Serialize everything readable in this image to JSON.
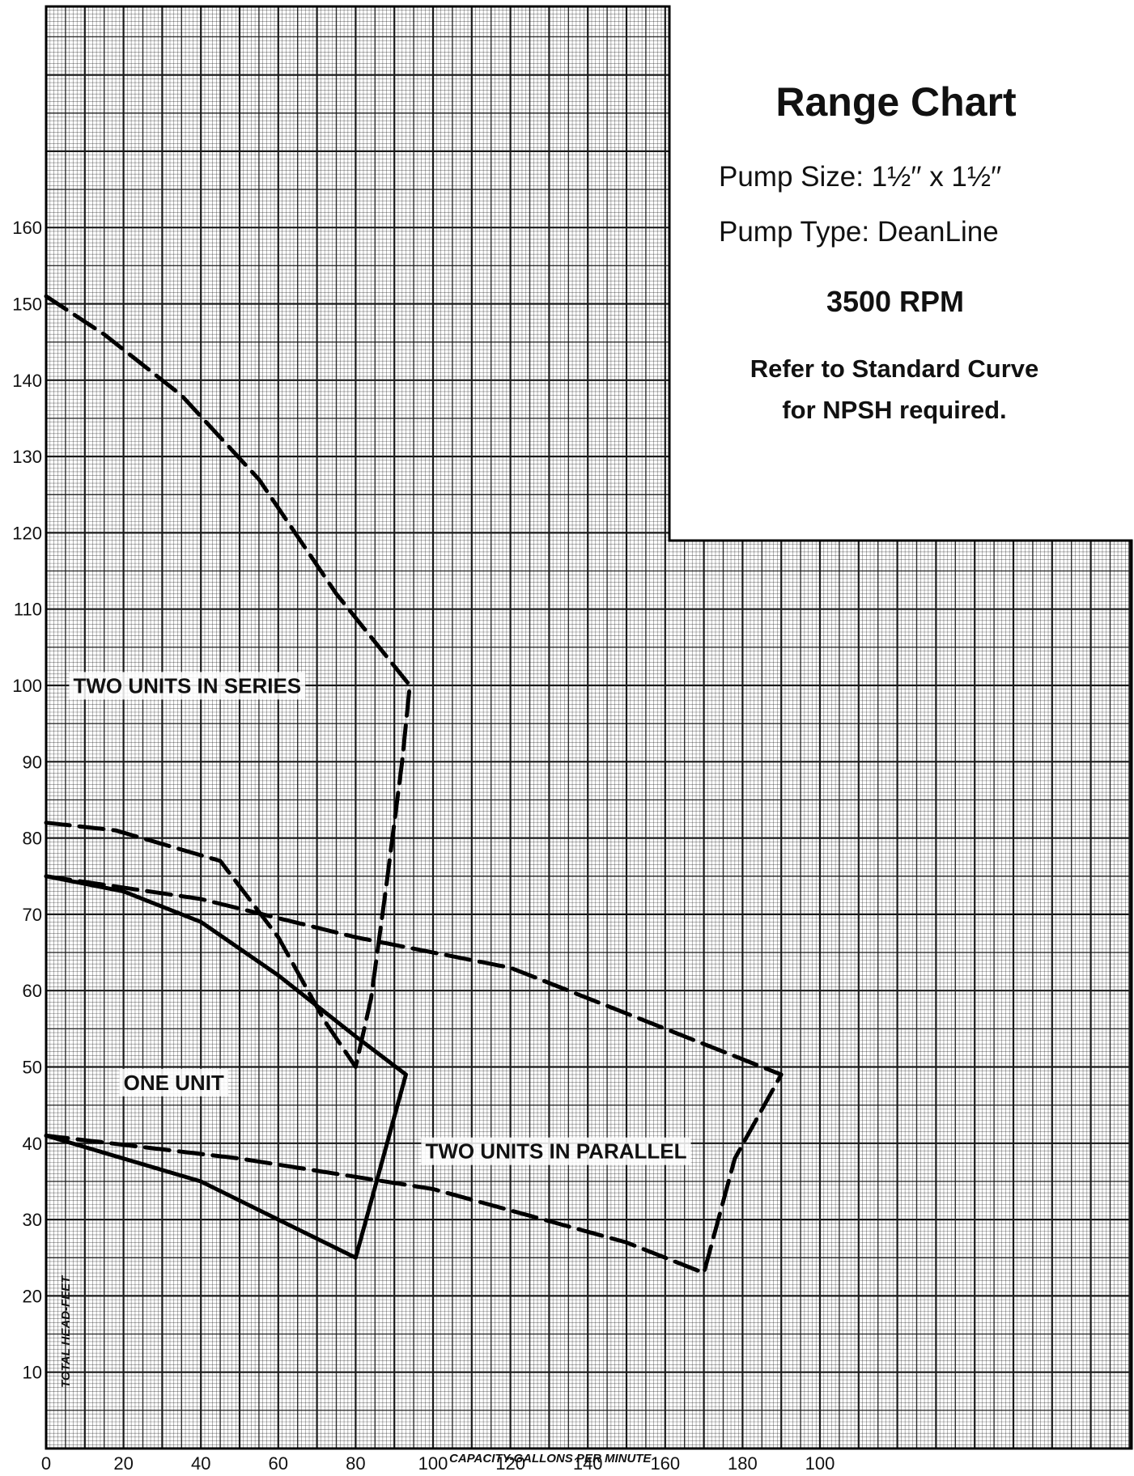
{
  "chart_data": {
    "type": "line",
    "title": "Range Chart",
    "info": {
      "pump_size": "Pump Size: 1½′′ x 1½′′",
      "pump_type": "Pump Type: DeanLine",
      "rpm": "3500 RPM",
      "note_line1": "Refer to Standard Curve",
      "note_line2": "for NPSH required."
    },
    "xlabel": "CAPACITY-GALLONS PER MINUTE",
    "ylabel": "TOTAL HEAD-FEET",
    "xlim": [
      0,
      280
    ],
    "ylim": [
      0,
      185
    ],
    "x_ticks": [
      "0",
      "20",
      "40",
      "60",
      "80",
      "100",
      "120",
      "140",
      "160",
      "180",
      "100"
    ],
    "y_ticks": [
      "10",
      "20",
      "30",
      "40",
      "50",
      "60",
      "70",
      "80",
      "90",
      "100",
      "110",
      "120",
      "130",
      "140",
      "150",
      "160"
    ],
    "grid": true,
    "series": [
      {
        "name": "ONE UNIT",
        "style": "solid",
        "label_at": [
          20,
          47
        ],
        "points": [
          [
            0,
            75
          ],
          [
            20,
            73
          ],
          [
            40,
            69
          ],
          [
            60,
            62
          ],
          [
            80,
            54
          ],
          [
            93,
            49
          ],
          [
            80,
            25
          ],
          [
            40,
            35
          ],
          [
            0,
            41
          ]
        ]
      },
      {
        "name": "TWO UNITS IN SERIES",
        "style": "dash",
        "label_at": [
          7,
          99
        ],
        "points": [
          [
            0,
            151
          ],
          [
            15,
            146
          ],
          [
            35,
            138
          ],
          [
            55,
            127
          ],
          [
            75,
            112
          ],
          [
            94,
            100
          ],
          [
            92,
            90
          ],
          [
            88,
            74
          ],
          [
            84,
            59
          ],
          [
            80,
            50
          ],
          [
            72,
            56
          ],
          [
            60,
            67
          ],
          [
            45,
            77
          ],
          [
            18,
            81
          ],
          [
            0,
            82
          ]
        ]
      },
      {
        "name": "TWO UNITS IN PARALLEL",
        "style": "dash",
        "label_at": [
          98,
          38
        ],
        "points": [
          [
            0,
            75
          ],
          [
            40,
            72
          ],
          [
            80,
            67
          ],
          [
            120,
            63
          ],
          [
            160,
            55
          ],
          [
            190,
            49
          ],
          [
            178,
            38
          ],
          [
            170,
            23
          ],
          [
            150,
            27
          ],
          [
            100,
            34
          ],
          [
            50,
            38
          ],
          [
            0,
            41
          ]
        ]
      }
    ]
  }
}
